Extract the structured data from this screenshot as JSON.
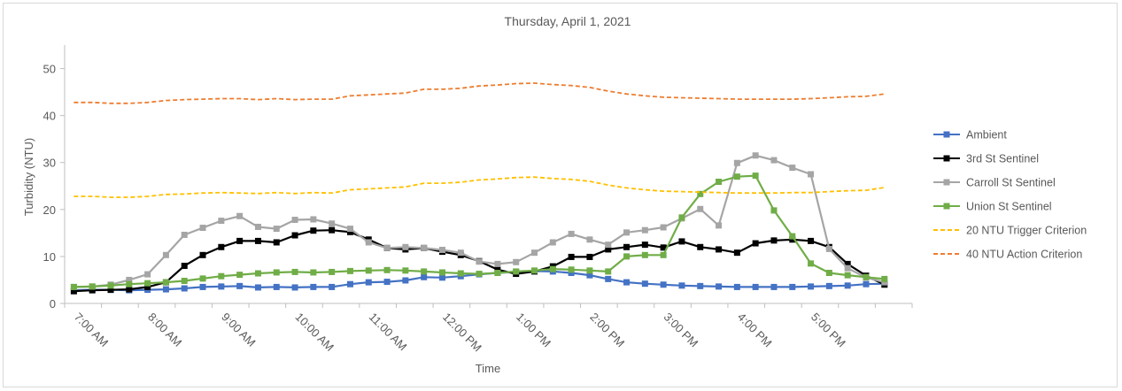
{
  "chart_data": {
    "type": "line",
    "title": "Thursday, April 1, 2021",
    "xlabel": "Time",
    "ylabel": "Turbidity (NTU)",
    "ylim": [
      0,
      55
    ],
    "yticks": [
      0,
      10,
      20,
      30,
      40,
      50
    ],
    "grid": false,
    "legend_position": "right",
    "x_start": "7:00 AM",
    "x_interval_minutes": 15,
    "x_tick_labels": [
      "7:00 AM",
      "8:00 AM",
      "9:00 AM",
      "10:00 AM",
      "11:00 AM",
      "12:00 PM",
      "1:00 PM",
      "2:00 PM",
      "3:00 PM",
      "4:00 PM",
      "5:00 PM"
    ],
    "series": [
      {
        "name": "Ambient",
        "color": "#4472c4",
        "style": "solid",
        "marker": true,
        "values": [
          2.8,
          2.9,
          2.9,
          2.8,
          2.9,
          3.0,
          3.2,
          3.5,
          3.6,
          3.7,
          3.4,
          3.5,
          3.4,
          3.5,
          3.5,
          4.1,
          4.5,
          4.6,
          4.9,
          5.6,
          5.5,
          5.8,
          6.2,
          6.5,
          6.7,
          6.9,
          6.8,
          6.5,
          6.0,
          5.2,
          4.5,
          4.2,
          4.0,
          3.8,
          3.7,
          3.6,
          3.5,
          3.5,
          3.5,
          3.5,
          3.6,
          3.7,
          3.8,
          4.1,
          4.2
        ]
      },
      {
        "name": "3rd St Sentinel",
        "color": "#000000",
        "style": "solid",
        "marker": true,
        "values": [
          2.6,
          2.8,
          2.9,
          3.0,
          3.5,
          4.5,
          8.0,
          10.3,
          12.0,
          13.3,
          13.3,
          13.0,
          14.5,
          15.5,
          15.6,
          15.2,
          13.6,
          11.8,
          11.5,
          11.8,
          11.0,
          10.3,
          9.0,
          7.2,
          6.3,
          6.8,
          7.9,
          9.9,
          9.9,
          11.5,
          12.0,
          12.5,
          11.9,
          13.2,
          12.0,
          11.5,
          10.8,
          12.8,
          13.4,
          13.6,
          13.3,
          12.0,
          8.4,
          5.9,
          4.0
        ]
      },
      {
        "name": "Carroll St Sentinel",
        "color": "#a5a5a5",
        "style": "solid",
        "marker": true,
        "values": [
          3.5,
          3.6,
          4.0,
          5.0,
          6.2,
          10.3,
          14.6,
          16.1,
          17.6,
          18.6,
          16.3,
          15.9,
          17.8,
          17.9,
          17.0,
          15.9,
          13.0,
          11.8,
          12.0,
          11.8,
          11.4,
          10.8,
          8.9,
          8.4,
          8.8,
          10.8,
          13.0,
          14.8,
          13.6,
          12.5,
          15.1,
          15.6,
          16.2,
          18.1,
          20.1,
          16.6,
          29.9,
          31.5,
          30.5,
          28.9,
          27.5,
          11.6,
          7.5,
          5.5,
          4.5
        ]
      },
      {
        "name": "Union St Sentinel",
        "color": "#70ad47",
        "style": "solid",
        "marker": true,
        "values": [
          3.5,
          3.6,
          3.8,
          4.1,
          4.3,
          4.5,
          4.8,
          5.3,
          5.8,
          6.1,
          6.4,
          6.6,
          6.7,
          6.6,
          6.7,
          6.9,
          7.0,
          7.1,
          7.0,
          6.8,
          6.6,
          6.4,
          6.3,
          6.5,
          6.8,
          7.0,
          7.3,
          7.2,
          7.0,
          6.8,
          10.0,
          10.3,
          10.3,
          18.3,
          23.3,
          25.9,
          27.0,
          27.2,
          19.8,
          14.3,
          8.5,
          6.5,
          6.0,
          5.6,
          5.2
        ]
      },
      {
        "name": "20 NTU Trigger Criterion",
        "color": "#ffc000",
        "style": "dashed",
        "marker": false,
        "values": [
          22.8,
          22.8,
          22.6,
          22.6,
          22.8,
          23.2,
          23.3,
          23.5,
          23.6,
          23.5,
          23.4,
          23.6,
          23.4,
          23.6,
          23.5,
          24.2,
          24.4,
          24.6,
          24.8,
          25.6,
          25.6,
          25.8,
          26.3,
          26.5,
          26.8,
          26.9,
          26.6,
          26.4,
          26.0,
          25.2,
          24.6,
          24.2,
          23.9,
          23.8,
          23.7,
          23.6,
          23.5,
          23.5,
          23.5,
          23.6,
          23.6,
          23.8,
          24.0,
          24.1,
          24.7
        ]
      },
      {
        "name": "40 NTU Action Criterion",
        "color": "#ed7d31",
        "style": "dashed",
        "marker": false,
        "values": [
          42.8,
          42.8,
          42.6,
          42.6,
          42.8,
          43.2,
          43.4,
          43.5,
          43.6,
          43.6,
          43.4,
          43.6,
          43.4,
          43.5,
          43.5,
          44.2,
          44.4,
          44.6,
          44.8,
          45.6,
          45.6,
          45.8,
          46.3,
          46.5,
          46.8,
          46.9,
          46.6,
          46.4,
          46.0,
          45.2,
          44.6,
          44.2,
          43.9,
          43.8,
          43.7,
          43.6,
          43.5,
          43.5,
          43.5,
          43.5,
          43.6,
          43.8,
          44.0,
          44.1,
          44.6
        ]
      }
    ]
  }
}
